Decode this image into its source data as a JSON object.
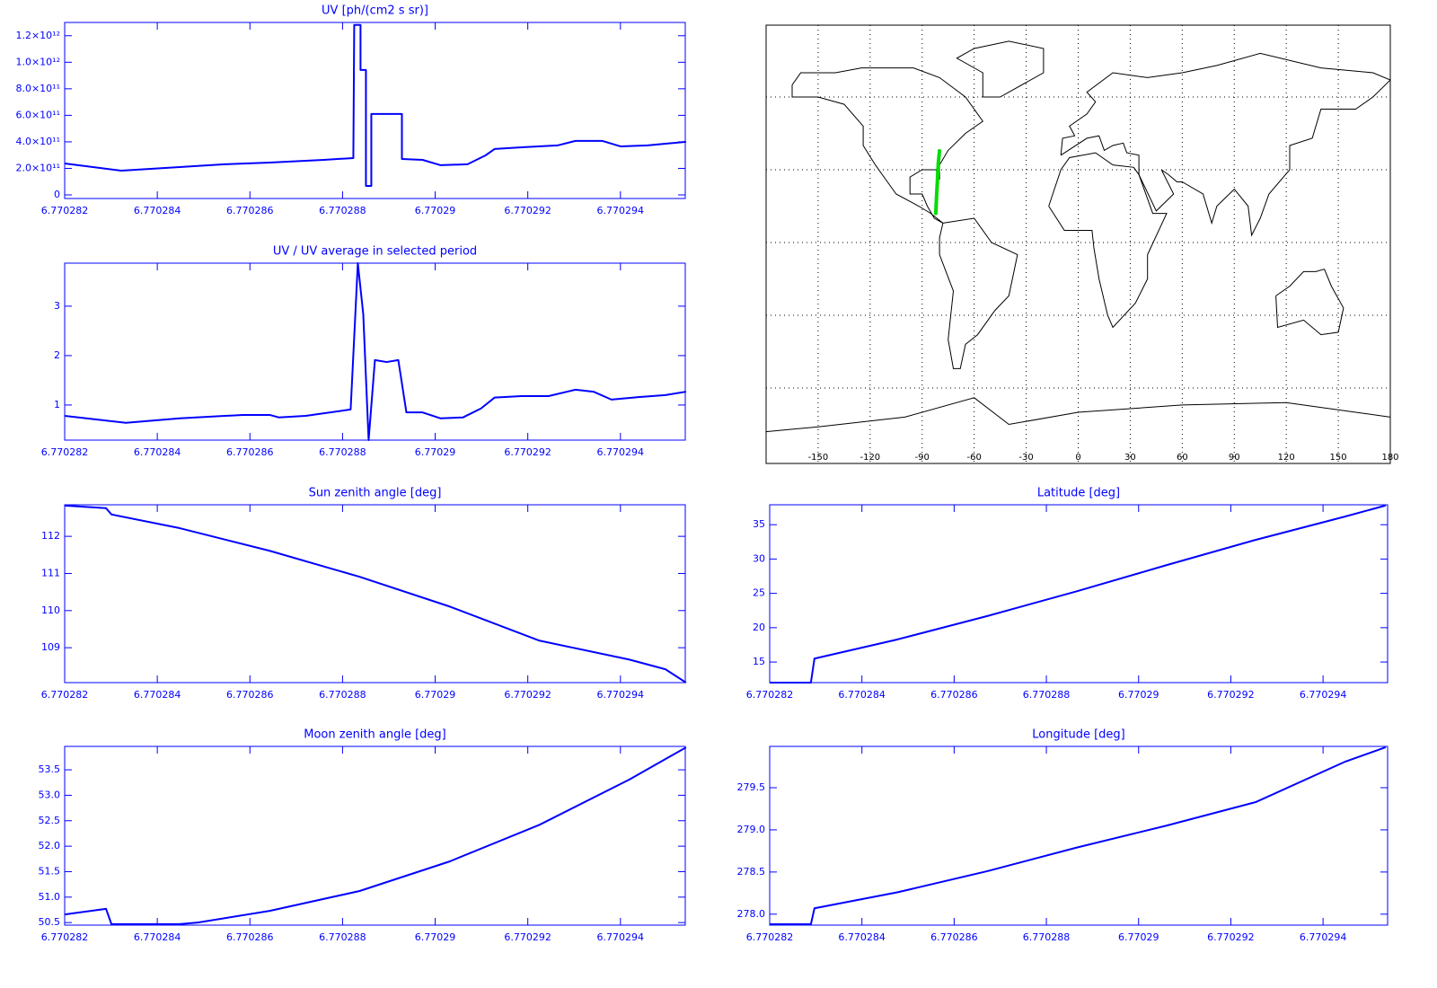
{
  "chart_data": [
    {
      "type": "line",
      "title": "UV [ph/(cm2 s sr)]",
      "color": "#0000ff",
      "x": [
        6.770282,
        6.770283223,
        6.770284485,
        6.770285456,
        6.770286427,
        6.770287592,
        6.770288233,
        6.770288252,
        6.770288388,
        6.770288388,
        6.770288505,
        6.770288505,
        6.770288621,
        6.770288621,
        6.770288951,
        6.770289282,
        6.770289282,
        6.770289728,
        6.770290117,
        6.770290699,
        6.770291087,
        6.770291282,
        6.770291864,
        6.770292641,
        6.770293029,
        6.770293612,
        6.770294,
        6.770294583,
        6.770294971,
        6.770295417
      ],
      "values": [
        237000000000.0,
        183000000000.0,
        210000000000.0,
        231000000000.0,
        244000000000.0,
        264000000000.0,
        278000000000.0,
        1281000000000.0,
        1281000000000.0,
        942000000000.0,
        942000000000.0,
        68000000000.0,
        68000000000.0,
        610000000000.0,
        610000000000.0,
        610000000000.0,
        271000000000.0,
        264000000000.0,
        224000000000.0,
        231000000000.0,
        298000000000.0,
        346000000000.0,
        359000000000.0,
        373000000000.0,
        407000000000.0,
        407000000000.0,
        366000000000.0,
        373000000000.0,
        386000000000.0,
        400000000000.0
      ],
      "xlim": [
        6.770282,
        6.7702954
      ],
      "ylim": [
        -27000000000.0,
        1300000000000.0
      ],
      "xticks": [
        6.770282,
        6.770284,
        6.770286,
        6.770288,
        6.77029,
        6.770292,
        6.770294
      ],
      "yticks": [
        0,
        {
          "value": 200000000000.0,
          "label": "2.0×10¹¹"
        },
        {
          "value": 400000000000.0,
          "label": "4.0×10¹¹"
        },
        {
          "value": 600000000000.0,
          "label": "6.0×10¹¹"
        },
        {
          "value": 800000000000.0,
          "label": "8.0×10¹¹"
        },
        {
          "value": 1000000000000.0,
          "label": "1.0×10¹²"
        },
        {
          "value": 1200000000000.0,
          "label": "1.2×10¹²"
        }
      ]
    },
    {
      "type": "line",
      "title": "UV / UV average in selected period",
      "color": "#0000ff",
      "x": [
        6.770282,
        6.77028332,
        6.770284485,
        6.770285845,
        6.770286427,
        6.770286621,
        6.770287204,
        6.770288175,
        6.77028833,
        6.770288447,
        6.770288563,
        6.770288699,
        6.770288951,
        6.770289204,
        6.770289379,
        6.770289728,
        6.770290117,
        6.770290602,
        6.77029099,
        6.770291282,
        6.770291864,
        6.770292447,
        6.770293029,
        6.770293417,
        6.770293806,
        6.770294388,
        6.770294971,
        6.770295417
      ],
      "values": [
        0.78,
        0.64,
        0.73,
        0.8,
        0.8,
        0.75,
        0.78,
        0.91,
        3.87,
        2.84,
        0.29,
        1.91,
        1.87,
        1.91,
        0.85,
        0.85,
        0.73,
        0.75,
        0.93,
        1.15,
        1.18,
        1.18,
        1.31,
        1.27,
        1.11,
        1.16,
        1.2,
        1.27
      ],
      "xlim": [
        6.770282,
        6.7702954
      ],
      "ylim": [
        0.29,
        3.87
      ],
      "xticks": [
        6.770282,
        6.770284,
        6.770286,
        6.770288,
        6.77029,
        6.770292,
        6.770294
      ],
      "yticks": [
        1,
        2,
        3
      ]
    },
    {
      "type": "map",
      "xlim": [
        -180,
        180
      ],
      "xticks": [
        -150,
        -120,
        -90,
        -60,
        -30,
        0,
        30,
        60,
        90,
        120,
        150,
        180
      ],
      "grid": true,
      "track_color": "#00dd00"
    },
    {
      "type": "line",
      "title": "Sun zenith angle [deg]",
      "color": "#0000ff",
      "x": [
        6.770282,
        6.770282893,
        6.77028301,
        6.770284485,
        6.770286427,
        6.770288369,
        6.770290311,
        6.770292252,
        6.770294194,
        6.770294971,
        6.770295417
      ],
      "values": [
        112.83,
        112.76,
        112.59,
        112.22,
        111.61,
        110.91,
        110.11,
        109.19,
        108.68,
        108.42,
        108.06
      ],
      "xlim": [
        6.770282,
        6.7702954
      ],
      "ylim": [
        108.06,
        112.85
      ],
      "xticks": [
        6.770282,
        6.770284,
        6.770286,
        6.770288,
        6.77029,
        6.770292,
        6.770294
      ],
      "yticks": [
        109,
        110,
        111,
        112
      ]
    },
    {
      "type": "line",
      "title": "Latitude [deg]",
      "color": "#0000ff",
      "x": [
        6.770282,
        6.770282893,
        6.770282971,
        6.770284777,
        6.770286718,
        6.77028866,
        6.770290602,
        6.770292544,
        6.770294485,
        6.770295359
      ],
      "values": [
        12.0,
        12.0,
        15.5,
        18.3,
        21.7,
        25.3,
        29.1,
        32.8,
        36.2,
        37.8
      ],
      "xlim": [
        6.770282,
        6.7702954
      ],
      "ylim": [
        12.0,
        37.9
      ],
      "xticks": [
        6.770282,
        6.770284,
        6.770286,
        6.770288,
        6.77029,
        6.770292,
        6.770294
      ],
      "yticks": [
        15,
        20,
        25,
        30,
        35
      ]
    },
    {
      "type": "line",
      "title": "Moon zenith angle [deg]",
      "color": "#0000ff",
      "x": [
        6.770282,
        6.770282893,
        6.77028301,
        6.770284485,
        6.770284874,
        6.770286427,
        6.770288369,
        6.770290311,
        6.770292252,
        6.770294194,
        6.770294971,
        6.770295417
      ],
      "values": [
        50.66,
        50.77,
        50.47,
        50.47,
        50.5,
        50.73,
        51.12,
        51.7,
        52.42,
        53.31,
        53.71,
        53.94
      ],
      "xlim": [
        6.770282,
        6.7702954
      ],
      "ylim": [
        50.45,
        53.96
      ],
      "xticks": [
        6.770282,
        6.770284,
        6.770286,
        6.770288,
        6.77029,
        6.770292,
        6.770294
      ],
      "yticks": [
        50.5,
        {
          "value": 51,
          "label": "51.0"
        },
        51.5,
        {
          "value": 52,
          "label": "52.0"
        },
        52.5,
        {
          "value": 53,
          "label": "53.0"
        },
        53.5
      ]
    },
    {
      "type": "line",
      "title": "Longitude [deg]",
      "color": "#0000ff",
      "x": [
        6.770282,
        6.770282893,
        6.770282971,
        6.770284777,
        6.770286718,
        6.77028866,
        6.770290602,
        6.770292544,
        6.770294485,
        6.770295359
      ],
      "values": [
        277.88,
        277.88,
        278.07,
        278.26,
        278.51,
        278.79,
        279.05,
        279.33,
        279.81,
        279.98
      ],
      "xlim": [
        6.770282,
        6.7702954
      ],
      "ylim": [
        277.87,
        279.99
      ],
      "xticks": [
        6.770282,
        6.770284,
        6.770286,
        6.770288,
        6.77029,
        6.770292,
        6.770294
      ],
      "yticks": [
        {
          "value": 278,
          "label": "278.0"
        },
        278.5,
        {
          "value": 279,
          "label": "279.0"
        },
        279.5
      ]
    }
  ]
}
